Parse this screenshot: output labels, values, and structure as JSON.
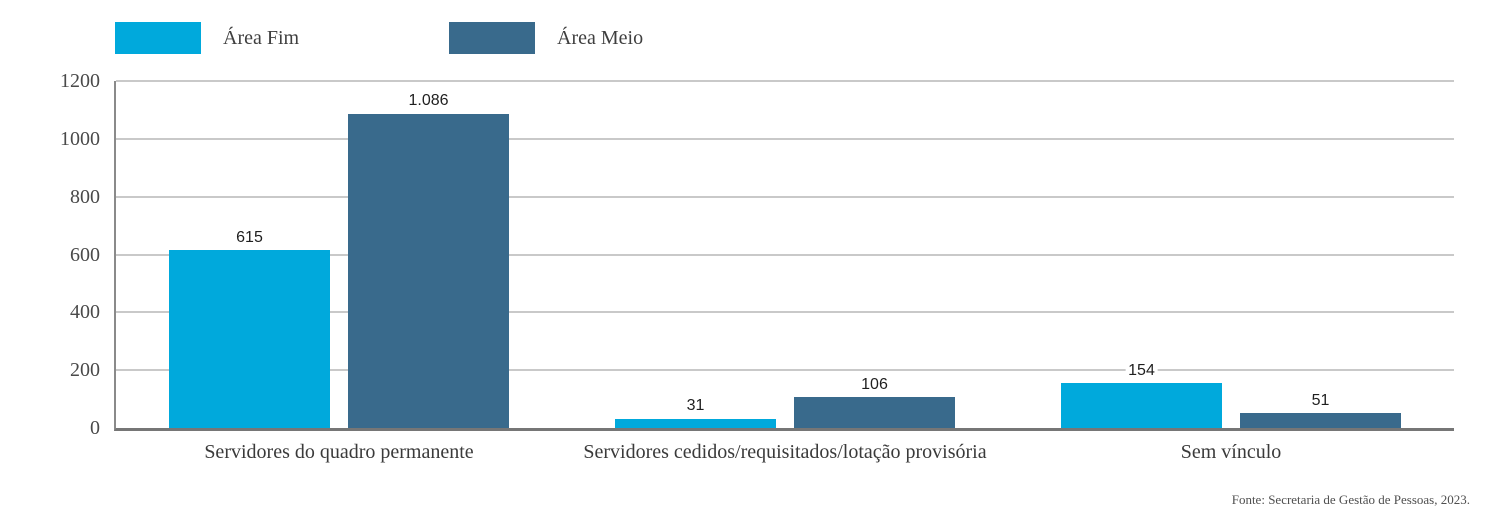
{
  "footer": {
    "source": "Fonte: Secretaria de Gestão de Pessoas, 2023."
  },
  "colors": {
    "area_fim": "#00a9dc",
    "area_meio": "#396a8c",
    "gridline": "#c9c9c9",
    "axis": "#767676",
    "value_label": "#1f1f1f",
    "axis_label": "#4a4a4a"
  },
  "chart_data": {
    "type": "bar",
    "categories": [
      "Servidores do quadro permanente",
      "Servidores cedidos/requisitados/lotação provisória",
      "Sem vínculo"
    ],
    "series": [
      {
        "name": "Área Fim",
        "color": "#00a9dc",
        "values": [
          615,
          31,
          154
        ],
        "labels": [
          "615",
          "31",
          "154"
        ]
      },
      {
        "name": "Área Meio",
        "color": "#396a8c",
        "values": [
          1086,
          106,
          51
        ],
        "labels": [
          "1.086",
          "106",
          "51"
        ]
      }
    ],
    "ylim": [
      0,
      1200
    ],
    "yticks": [
      0,
      200,
      400,
      600,
      800,
      1000,
      1200
    ],
    "grid": true,
    "legend_position": "top"
  }
}
